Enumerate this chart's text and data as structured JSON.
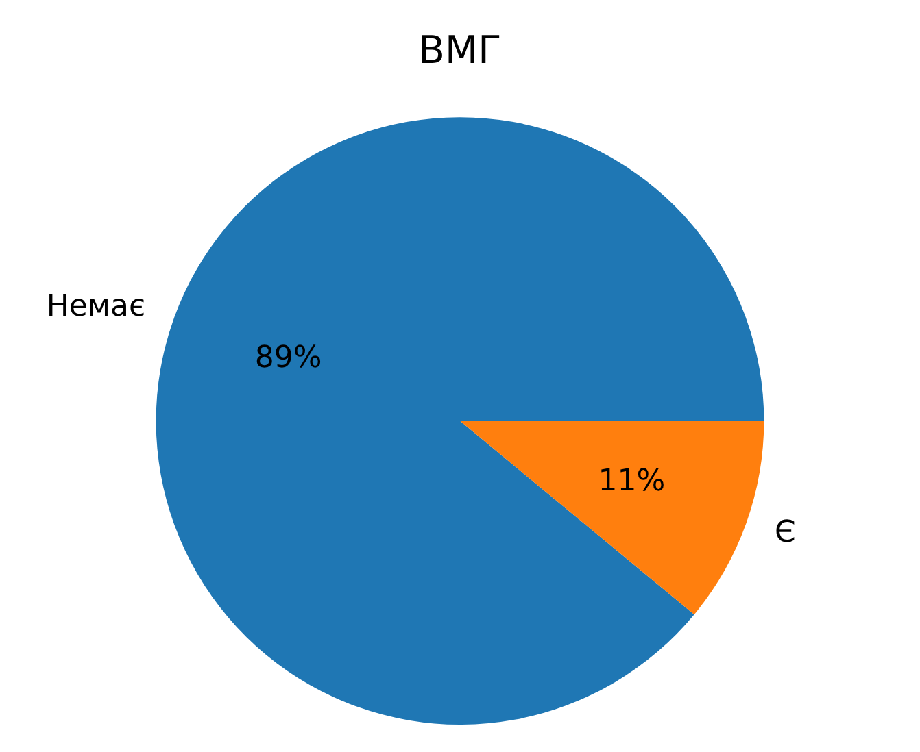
{
  "chart_data": {
    "type": "pie",
    "title": "ВМГ",
    "categories": [
      "Немає",
      "Є"
    ],
    "values": [
      89,
      11
    ],
    "colors": [
      "#1f77b4",
      "#ff7f0e"
    ],
    "value_labels": [
      "89%",
      "11%"
    ]
  }
}
